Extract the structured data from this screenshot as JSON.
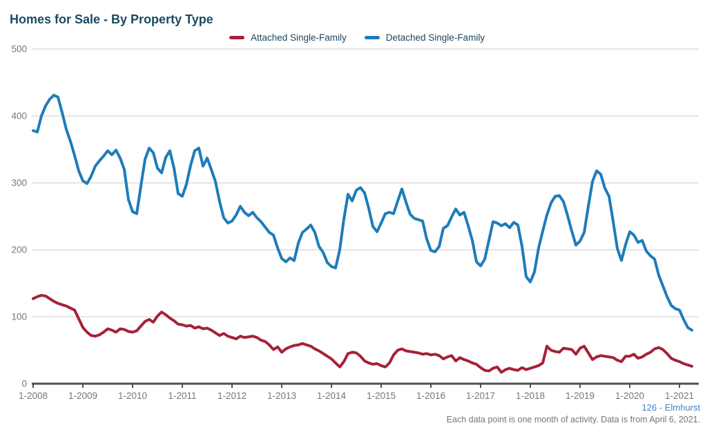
{
  "title": "Homes for Sale - By Property Type",
  "legend": [
    {
      "label": "Attached Single-Family",
      "color": "#a62139"
    },
    {
      "label": "Detached Single-Family",
      "color": "#1e7cba"
    }
  ],
  "footer": {
    "source_link": "126 - Elmhurst",
    "note": "Each data point is one month of activity. Data is from April 6, 2021."
  },
  "colors": {
    "title_text": "#1a4a63",
    "axis_label": "#767676",
    "axis_line": "#4f4f4f",
    "gridline": "#c8c8c8",
    "attached": "#a62139",
    "detached": "#1e7cba",
    "source_link": "#4484c4",
    "note_text": "#757575"
  },
  "chart_data": {
    "type": "line",
    "title": "Homes for Sale - By Property Type",
    "xlabel": "",
    "ylabel": "",
    "x_frequency": "monthly",
    "x_start": "1-2008",
    "x_end": "4-2021",
    "x_tick_labels": [
      "1-2008",
      "1-2009",
      "1-2010",
      "1-2011",
      "1-2012",
      "1-2013",
      "1-2014",
      "1-2015",
      "1-2016",
      "1-2017",
      "1-2018",
      "1-2019",
      "1-2020",
      "1-2021"
    ],
    "ylim": [
      0,
      500
    ],
    "y_ticks": [
      0,
      100,
      200,
      300,
      400,
      500
    ],
    "grid": "horizontal-major-only",
    "legend_position": "top-center",
    "series": [
      {
        "name": "Attached Single-Family",
        "color": "#a62139",
        "values": [
          127,
          130,
          132,
          131,
          127,
          123,
          120,
          118,
          116,
          113,
          110,
          97,
          84,
          77,
          72,
          71,
          73,
          77,
          82,
          80,
          77,
          82,
          81,
          78,
          77,
          79,
          86,
          93,
          96,
          92,
          101,
          107,
          103,
          98,
          94,
          89,
          88,
          86,
          87,
          83,
          85,
          82,
          83,
          80,
          76,
          72,
          75,
          71,
          69,
          67,
          71,
          69,
          70,
          71,
          69,
          65,
          63,
          58,
          51,
          55,
          47,
          52,
          55,
          57,
          58,
          60,
          58,
          56,
          52,
          49,
          45,
          41,
          37,
          31,
          25,
          33,
          45,
          47,
          46,
          41,
          34,
          31,
          29,
          30,
          27,
          25,
          31,
          43,
          50,
          52,
          49,
          48,
          47,
          46,
          44,
          45,
          43,
          44,
          42,
          37,
          40,
          42,
          34,
          39,
          36,
          34,
          31,
          29,
          24,
          20,
          19,
          23,
          25,
          17,
          21,
          23,
          21,
          20,
          24,
          21,
          23,
          25,
          27,
          31,
          56,
          50,
          48,
          47,
          53,
          52,
          51,
          44,
          53,
          56,
          46,
          36,
          40,
          42,
          41,
          40,
          39,
          35,
          33,
          41,
          41,
          44,
          38,
          40,
          44,
          47,
          52,
          54,
          51,
          45,
          38,
          35,
          33,
          30,
          28,
          26
        ]
      },
      {
        "name": "Detached Single-Family",
        "color": "#1e7cba",
        "values": [
          378,
          376,
          400,
          415,
          425,
          431,
          428,
          405,
          380,
          362,
          341,
          318,
          303,
          299,
          310,
          325,
          333,
          340,
          348,
          342,
          349,
          337,
          320,
          275,
          257,
          254,
          295,
          335,
          352,
          345,
          322,
          315,
          338,
          348,
          322,
          284,
          280,
          298,
          326,
          348,
          352,
          325,
          337,
          320,
          302,
          272,
          248,
          240,
          243,
          252,
          265,
          256,
          251,
          256,
          248,
          242,
          234,
          226,
          222,
          203,
          187,
          182,
          188,
          184,
          210,
          226,
          231,
          237,
          226,
          205,
          196,
          181,
          175,
          173,
          200,
          246,
          283,
          273,
          289,
          293,
          285,
          262,
          235,
          227,
          240,
          254,
          256,
          254,
          273,
          291,
          271,
          253,
          247,
          245,
          243,
          216,
          199,
          197,
          205,
          232,
          236,
          249,
          261,
          252,
          256,
          236,
          214,
          182,
          176,
          186,
          214,
          242,
          240,
          236,
          239,
          233,
          241,
          237,
          205,
          160,
          152,
          167,
          203,
          228,
          252,
          270,
          280,
          281,
          272,
          251,
          228,
          207,
          213,
          226,
          265,
          302,
          318,
          313,
          292,
          280,
          242,
          202,
          184,
          208,
          227,
          222,
          211,
          214,
          198,
          191,
          186,
          162,
          146,
          130,
          117,
          112,
          110,
          96,
          84,
          80
        ]
      }
    ]
  }
}
